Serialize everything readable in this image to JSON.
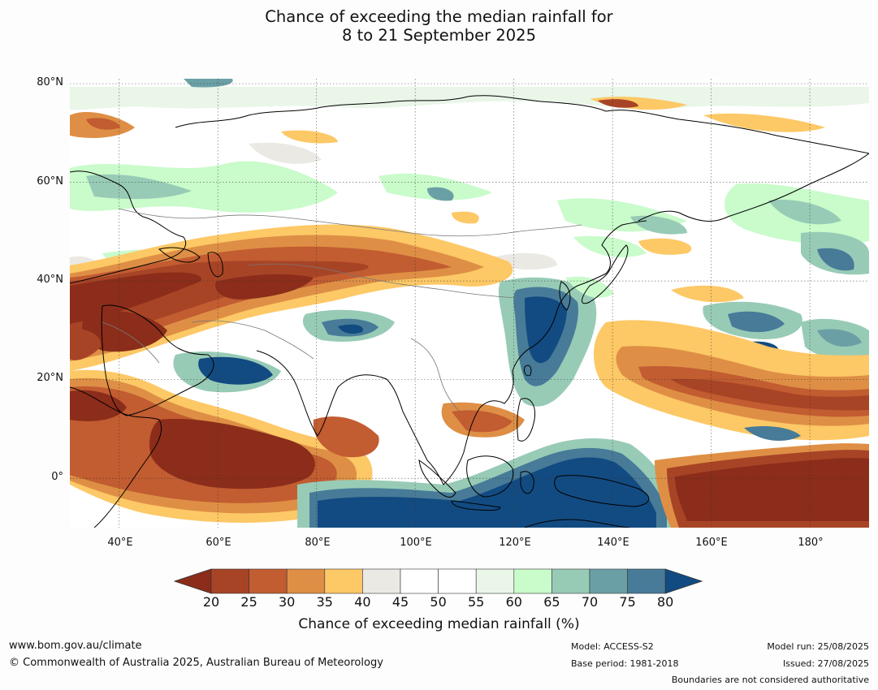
{
  "title": {
    "line1": "Chance of exceeding the median rainfall for",
    "line2": "8 to 21 September 2025"
  },
  "map": {
    "lat_labels": [
      "80°N",
      "60°N",
      "40°N",
      "20°N",
      "0°"
    ],
    "lon_labels": [
      "40°E",
      "60°E",
      "80°E",
      "100°E",
      "120°E",
      "140°E",
      "160°E",
      "180°"
    ],
    "extent": {
      "lon": [
        30,
        192
      ],
      "lat": [
        -10,
        81
      ]
    },
    "gridlines": true
  },
  "colorbar": {
    "ticks": [
      "20",
      "25",
      "30",
      "35",
      "40",
      "45",
      "50",
      "55",
      "60",
      "65",
      "70",
      "75",
      "80"
    ],
    "colors": [
      "#8b2d1a",
      "#a84426",
      "#c25c31",
      "#de8f45",
      "#fdc866",
      "#ebe9e4",
      "#ffffff",
      "#ffffff",
      "#e9f6e8",
      "#c9fbcb",
      "#98cbb6",
      "#6aa0a5",
      "#477b98",
      "#124b81"
    ],
    "label": "Chance of exceeding median rainfall (%)"
  },
  "footer": {
    "url": "www.bom.gov.au/climate",
    "copyright": "© Commonwealth of Australia 2025, Australian Bureau of Meteorology",
    "model": "Model: ACCESS-S2",
    "base_period": "Base period: 1981-2018",
    "model_run": "Model run: 25/08/2025",
    "issued": "Issued: 27/08/2025",
    "disclaimer": "Boundaries are not considered authoritative"
  }
}
